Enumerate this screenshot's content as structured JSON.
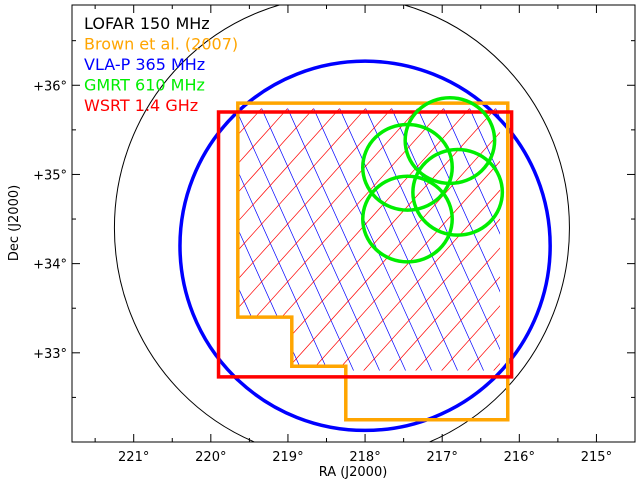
{
  "chart_data": {
    "type": "sky-coverage-map",
    "xlabel": "RA (J2000)",
    "ylabel": "Dec (J2000)",
    "xlim": [
      221.8,
      214.5
    ],
    "ylim": [
      32.0,
      36.9
    ],
    "x_ticks": [
      {
        "value": 221,
        "label": "221°"
      },
      {
        "value": 220,
        "label": "220°"
      },
      {
        "value": 219,
        "label": "219°"
      },
      {
        "value": 218,
        "label": "218°"
      },
      {
        "value": 217,
        "label": "217°"
      },
      {
        "value": 216,
        "label": "216°"
      },
      {
        "value": 215,
        "label": "215°"
      }
    ],
    "y_ticks": [
      {
        "value": 33,
        "label": "+33°"
      },
      {
        "value": 34,
        "label": "+34°"
      },
      {
        "value": 35,
        "label": "+35°"
      },
      {
        "value": 36,
        "label": "+36°"
      }
    ],
    "legend": {
      "placement": "top-left",
      "entries": [
        {
          "label": "LOFAR 150 MHz",
          "color": "#000000"
        },
        {
          "label": "Brown et al. (2007)",
          "color": "#ffa500"
        },
        {
          "label": "VLA-P 365 MHz",
          "color": "#0000ff"
        },
        {
          "label": "GMRT 610 MHz",
          "color": "#00ee00"
        },
        {
          "label": "WSRT 1.4 GHz",
          "color": "#ff0000"
        }
      ]
    },
    "series": [
      {
        "name": "LOFAR 150 MHz",
        "shape": "ellipse",
        "color": "#000000",
        "center": [
          218.3,
          34.4
        ],
        "radius_ra_deg": 2.95,
        "radius_dec_deg": 2.6
      },
      {
        "name": "VLA-P 365 MHz",
        "shape": "ellipse",
        "color": "#0000ff",
        "center": [
          218.0,
          34.2
        ],
        "radius_ra_deg": 2.4,
        "radius_dec_deg": 2.07
      },
      {
        "name": "Brown et al. (2007)",
        "shape": "polygon",
        "color": "#ffa500",
        "vertices": [
          [
            219.65,
            35.8
          ],
          [
            216.15,
            35.8
          ],
          [
            216.15,
            32.25
          ],
          [
            218.25,
            32.25
          ],
          [
            218.25,
            32.85
          ],
          [
            218.95,
            32.85
          ],
          [
            218.95,
            33.4
          ],
          [
            219.65,
            33.4
          ]
        ]
      },
      {
        "name": "WSRT 1.4 GHz",
        "shape": "polygon",
        "color": "#ff0000",
        "vertices": [
          [
            219.9,
            35.7
          ],
          [
            216.1,
            35.7
          ],
          [
            216.1,
            32.73
          ],
          [
            219.9,
            32.73
          ]
        ]
      },
      {
        "name": "GMRT 610 MHz",
        "shape": "circles",
        "color": "#00ee00",
        "radius_ra_deg": 0.58,
        "radius_dec_deg": 0.48,
        "centers": [
          [
            216.9,
            35.38
          ],
          [
            217.45,
            35.08
          ],
          [
            216.8,
            34.8
          ],
          [
            217.45,
            34.5
          ]
        ]
      }
    ],
    "hatch_region": {
      "vertices": [
        [
          219.65,
          35.74
        ],
        [
          216.25,
          35.74
        ],
        [
          216.25,
          32.8
        ],
        [
          218.25,
          32.8
        ],
        [
          218.25,
          32.85
        ],
        [
          218.95,
          32.85
        ],
        [
          218.95,
          33.4
        ],
        [
          219.65,
          33.4
        ]
      ],
      "colors": [
        "#0000ff",
        "#ff0000"
      ]
    }
  }
}
